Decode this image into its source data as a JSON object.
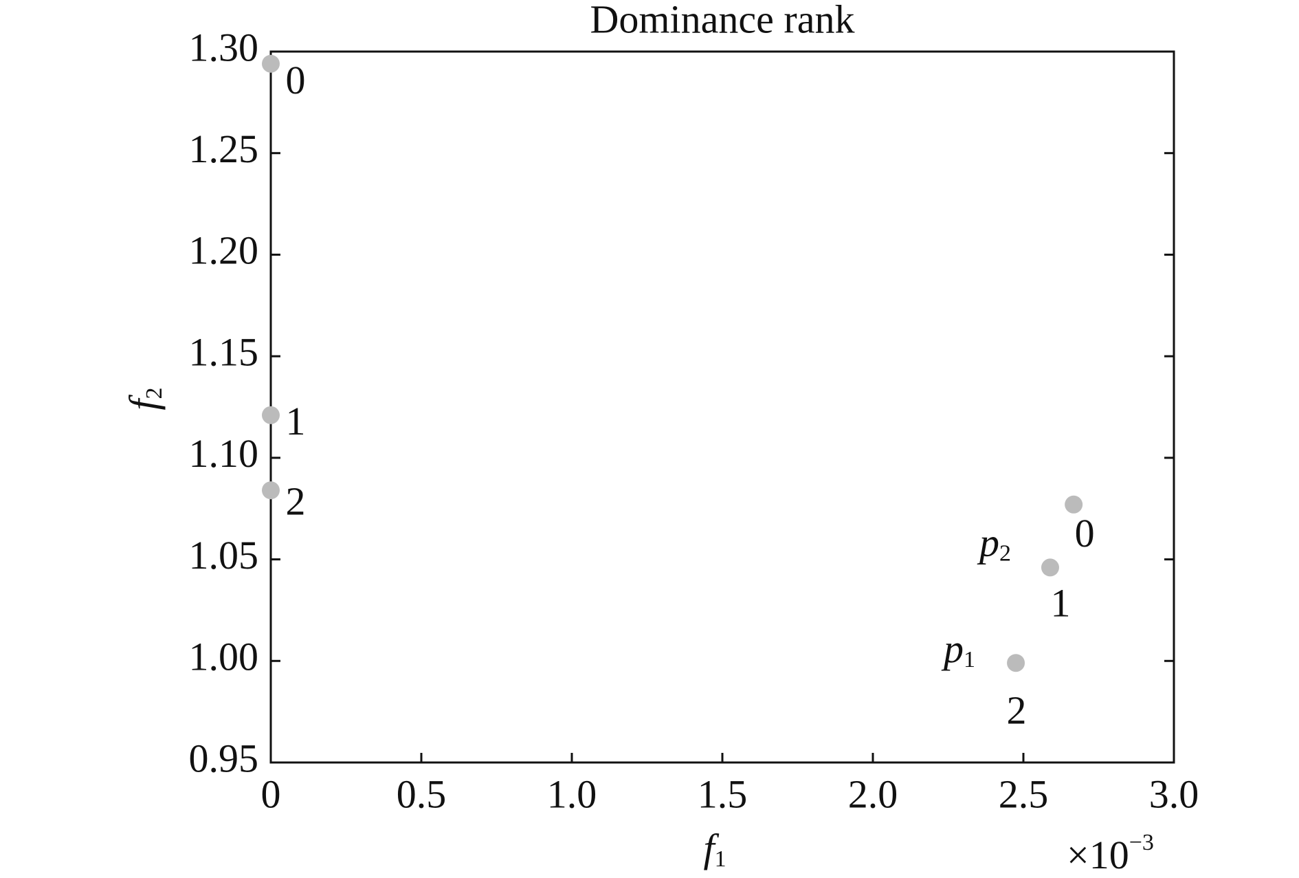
{
  "chart_data": {
    "type": "scatter",
    "title": "Dominance rank",
    "xlabel": {
      "text": "f",
      "subscript": "1"
    },
    "ylabel": {
      "text": "f",
      "subscript": "2"
    },
    "x_multiplier": {
      "text": "×10",
      "superscript": "−3"
    },
    "x": [
      0,
      0,
      0,
      2.667,
      2.589,
      2.475
    ],
    "values": [
      1.294,
      1.121,
      1.084,
      1.077,
      1.046,
      0.999
    ],
    "labels": [
      "0",
      "1",
      "2",
      "0",
      "1",
      "2"
    ],
    "point_annotations": [
      null,
      null,
      null,
      null,
      {
        "text": "p",
        "subscript": "2"
      },
      {
        "text": "p",
        "subscript": "1"
      }
    ],
    "color": "#bbbbbb",
    "xlim": [
      0,
      3
    ],
    "xticks": [
      0,
      0.5,
      {
        "value": 1,
        "label": "1.0"
      },
      1.5,
      {
        "value": 2,
        "label": "2.0"
      },
      2.5,
      {
        "value": 3,
        "label": "3.0"
      }
    ],
    "ylim": [
      0.95,
      1.3
    ],
    "yticks": [
      0.95,
      {
        "value": 1,
        "label": "1.00"
      },
      1.05,
      {
        "value": 1.1,
        "label": "1.10"
      },
      1.15,
      {
        "value": 1.2,
        "label": "1.20"
      },
      1.25,
      {
        "value": 1.3,
        "label": "1.30"
      }
    ],
    "grid": false
  }
}
